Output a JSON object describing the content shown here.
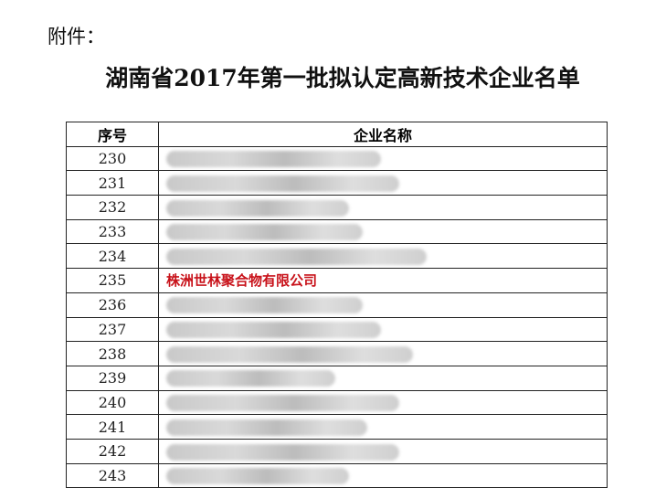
{
  "attachment_label": "附件：",
  "title": "湖南省2017年第一批拟认定高新技术企业名单",
  "table": {
    "headers": [
      "序号",
      "企业名称"
    ],
    "rows": [
      {
        "no": "230",
        "name": "",
        "redacted": true
      },
      {
        "no": "231",
        "name": "",
        "redacted": true
      },
      {
        "no": "232",
        "name": "",
        "redacted": true
      },
      {
        "no": "233",
        "name": "",
        "redacted": true
      },
      {
        "no": "234",
        "name": "",
        "redacted": true
      },
      {
        "no": "235",
        "name": "株洲世林聚合物有限公司",
        "redacted": false,
        "color": "#c8121a"
      },
      {
        "no": "236",
        "name": "",
        "redacted": true
      },
      {
        "no": "237",
        "name": "",
        "redacted": true
      },
      {
        "no": "238",
        "name": "",
        "redacted": true
      },
      {
        "no": "239",
        "name": "",
        "redacted": true
      },
      {
        "no": "240",
        "name": "",
        "redacted": true
      },
      {
        "no": "241",
        "name": "",
        "redacted": true
      },
      {
        "no": "242",
        "name": "",
        "redacted": true
      },
      {
        "no": "243",
        "name": "",
        "redacted": true
      }
    ]
  }
}
